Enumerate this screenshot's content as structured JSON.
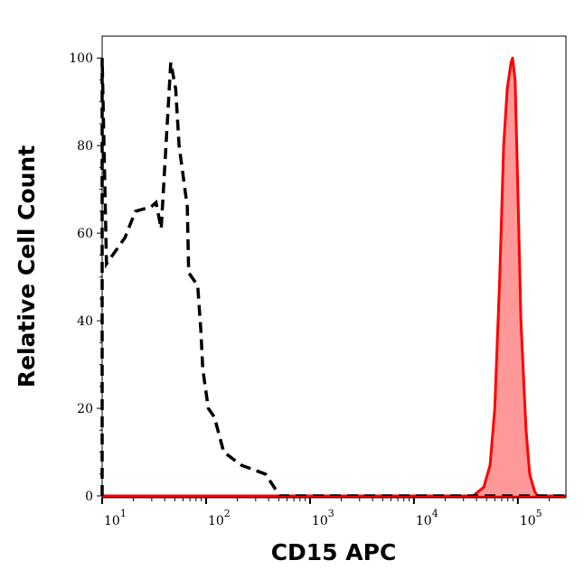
{
  "chart_data": {
    "type": "area",
    "title": "",
    "xlabel": "CD15 APC",
    "ylabel": "Relative Cell Count",
    "xscale": "log",
    "xlim": [
      10,
      290000
    ],
    "ylim": [
      0,
      105
    ],
    "grid": false,
    "yticks": [
      0,
      20,
      40,
      60,
      80,
      100
    ],
    "xticks": [
      {
        "base": "10",
        "exp": "1"
      },
      {
        "base": "10",
        "exp": "2"
      },
      {
        "base": "10",
        "exp": "3"
      },
      {
        "base": "10",
        "exp": "4"
      },
      {
        "base": "10",
        "exp": "5"
      }
    ],
    "series": [
      {
        "style": "dashed-line",
        "color": "#000000",
        "fill": "none",
        "x": [
          10,
          10,
          11,
          16.6,
          20.9,
          29.5,
          33,
          37,
          45.7,
          51,
          55,
          66,
          68,
          83,
          89,
          93,
          105,
          120,
          148,
          219,
          372,
          513,
          1000,
          10000,
          100000,
          290000
        ],
        "y": [
          0,
          100,
          53,
          59,
          65,
          66,
          67,
          61,
          99,
          93,
          80,
          66,
          51,
          48,
          38,
          29,
          20,
          18,
          10,
          7,
          5,
          0,
          0,
          0,
          0,
          0
        ]
      },
      {
        "style": "filled",
        "color": "#ff0000",
        "fill": "#ff9999",
        "x": [
          10,
          37000,
          47000,
          54000,
          60000,
          67000,
          73000,
          79000,
          86000,
          89000,
          94000,
          100000,
          107000,
          120000,
          130000,
          145000,
          155000,
          290000
        ],
        "y": [
          0,
          0,
          2,
          7,
          20,
          50,
          80,
          93,
          99,
          100,
          95,
          70,
          40,
          15,
          5,
          1,
          0,
          0
        ]
      }
    ]
  }
}
